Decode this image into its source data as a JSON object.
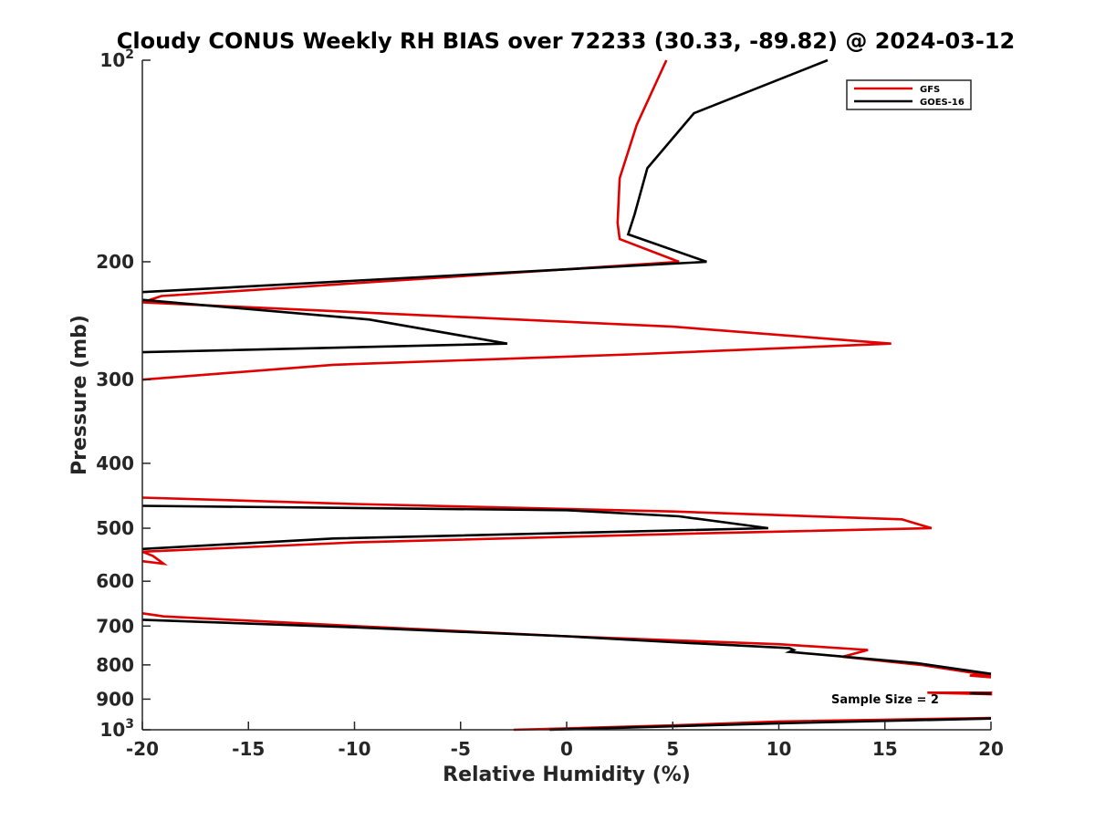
{
  "chart_data": {
    "type": "line",
    "title": "Cloudy CONUS Weekly RH BIAS over 72233 (30.33, -89.82) @ 2024-03-12",
    "xlabel": "Relative Humidity (%)",
    "ylabel": "Pressure (mb)",
    "xlim": [
      -20,
      20
    ],
    "ylim": [
      100,
      1000
    ],
    "yscale": "log",
    "yreversed": true,
    "xticks": [
      -20,
      -15,
      -10,
      -5,
      0,
      5,
      10,
      15,
      20
    ],
    "xtick_labels": [
      "-20",
      "-15",
      "-10",
      "-5",
      "0",
      "5",
      "10",
      "15",
      "20"
    ],
    "yticks": [
      {
        "value": 100,
        "label": "10",
        "sup": "2"
      },
      {
        "value": 200,
        "label": "200",
        "sup": ""
      },
      {
        "value": 300,
        "label": "300",
        "sup": ""
      },
      {
        "value": 400,
        "label": "400",
        "sup": ""
      },
      {
        "value": 500,
        "label": "500",
        "sup": ""
      },
      {
        "value": 600,
        "label": "600",
        "sup": ""
      },
      {
        "value": 700,
        "label": "700",
        "sup": ""
      },
      {
        "value": 800,
        "label": "800",
        "sup": ""
      },
      {
        "value": 900,
        "label": "900",
        "sup": ""
      },
      {
        "value": 1000,
        "label": "10",
        "sup": "3"
      }
    ],
    "legend_position": "top-right",
    "annotation": "Sample Size = 2",
    "series": [
      {
        "name": "GFS",
        "color": "#e00000",
        "segments": [
          [
            [
              4.7,
              100
            ],
            [
              3.3,
              125
            ],
            [
              2.5,
              150
            ],
            [
              2.4,
              175
            ],
            [
              2.5,
              185
            ],
            [
              5.3,
              200
            ]
          ],
          [
            [
              5.3,
              200
            ],
            [
              -19.1,
              225
            ],
            [
              -20,
              230
            ]
          ],
          [
            [
              -20,
              230
            ],
            [
              5.0,
              250
            ],
            [
              15.3,
              265
            ],
            [
              3.0,
              275
            ],
            [
              -11.0,
              285
            ],
            [
              -20,
              300
            ]
          ],
          [
            [
              -20,
              450
            ],
            [
              -10,
              460
            ],
            [
              5.0,
              472
            ],
            [
              15.8,
              485
            ],
            [
              17.2,
              500
            ],
            [
              5.0,
              510
            ],
            [
              -10,
              525
            ],
            [
              -20,
              542
            ]
          ],
          [
            [
              -20,
              542
            ],
            [
              -19.5,
              550
            ],
            [
              -19,
              565
            ],
            [
              -20,
              560
            ]
          ],
          [
            [
              -20,
              670
            ],
            [
              -19,
              677
            ],
            [
              -10,
              700
            ],
            [
              0,
              725
            ],
            [
              5.0,
              735
            ],
            [
              10,
              745
            ],
            [
              14.2,
              760
            ],
            [
              13.0,
              778
            ],
            [
              16.7,
              800
            ],
            [
              20,
              830
            ]
          ],
          [
            [
              20,
              835
            ],
            [
              19,
              830
            ],
            [
              20,
              825
            ]
          ],
          [
            [
              17,
              880
            ],
            [
              20,
              880
            ],
            [
              20,
              885
            ],
            [
              17,
              880
            ]
          ],
          [
            [
              -2.5,
              1000
            ],
            [
              5,
              985
            ],
            [
              10,
              972
            ],
            [
              20,
              960
            ]
          ]
        ]
      },
      {
        "name": "GOES-16",
        "color": "#000000",
        "segments": [
          [
            [
              12.3,
              100
            ],
            [
              6.0,
              120
            ],
            [
              3.8,
              145
            ],
            [
              3.2,
              170
            ],
            [
              2.9,
              182
            ],
            [
              6.6,
              200
            ]
          ],
          [
            [
              6.6,
              200
            ],
            [
              -20,
              222
            ]
          ],
          [
            [
              -20,
              228
            ],
            [
              -9.3,
              244
            ],
            [
              -2.8,
              265
            ],
            [
              -20,
              273
            ]
          ],
          [
            [
              -20,
              463
            ],
            [
              0,
              470
            ],
            [
              5.3,
              480
            ],
            [
              9.5,
              500
            ],
            [
              -11.0,
              518
            ],
            [
              -20,
              537
            ]
          ],
          [
            [
              -20,
              685
            ],
            [
              -10,
              703
            ],
            [
              0,
              725
            ],
            [
              5,
              740
            ],
            [
              10.5,
              755
            ],
            [
              10.7,
              760
            ],
            [
              10.5,
              765
            ],
            [
              16.5,
              795
            ],
            [
              20,
              825
            ]
          ],
          [
            [
              19,
              882
            ],
            [
              20,
              883
            ]
          ],
          [
            [
              -0.8,
              1000
            ],
            [
              10,
              978
            ],
            [
              20,
              962
            ]
          ]
        ]
      }
    ]
  }
}
